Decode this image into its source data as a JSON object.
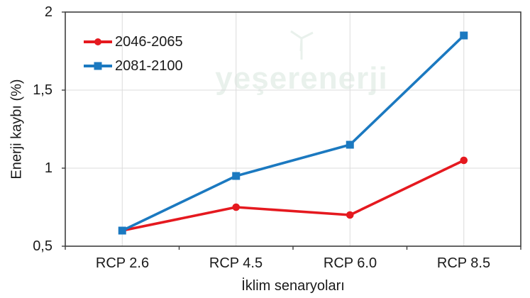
{
  "watermark": {
    "text": "yeşerenerji"
  },
  "chart_data": {
    "type": "line",
    "title": "",
    "xlabel": "İklim senaryoları",
    "ylabel": "Enerji kaybı (%)",
    "categories": [
      "RCP 2.6",
      "RCP 4.5",
      "RCP 6.0",
      "RCP 8.5"
    ],
    "series": [
      {
        "name": "2046-2065",
        "color": "#e5191f",
        "marker": "circle",
        "values": [
          0.6,
          0.75,
          0.7,
          1.05
        ]
      },
      {
        "name": "2081-2100",
        "color": "#1b79c0",
        "marker": "square",
        "values": [
          0.6,
          0.95,
          1.15,
          1.85
        ]
      }
    ],
    "ylim": [
      0.5,
      2
    ],
    "ytick_values": [
      0.5,
      1,
      1.5,
      2
    ],
    "ytick_labels": [
      "0,5",
      "1",
      "1,5",
      "2"
    ],
    "grid": true,
    "legend_position": "top-left-inside",
    "colors": {
      "axis": "#3f3f3f",
      "gridline": "#dcdcdc",
      "text": "#1a1a1a"
    }
  }
}
